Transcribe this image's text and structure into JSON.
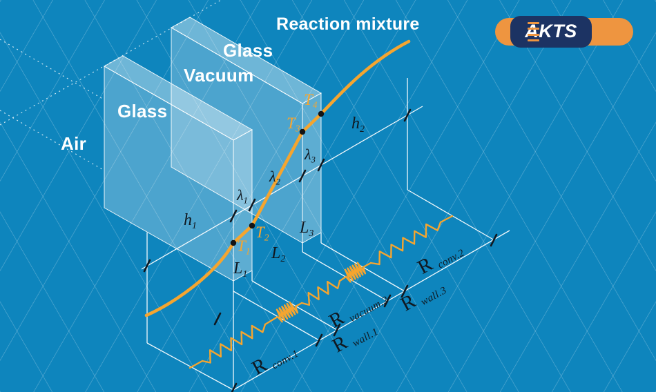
{
  "colors": {
    "background": "#0E85BD",
    "grid_line": "rgba(255,255,255,0.20)",
    "curve_orange": "#F5A52F",
    "diagram_white": "#FFFFFF",
    "math_label_dark": "#101820",
    "logo_orange": "#EE9540",
    "logo_navy": "#1C3363"
  },
  "regions": {
    "air": "Air",
    "glass_outer": "Glass",
    "vacuum": "Vacuum",
    "glass_inner": "Glass",
    "reaction_mixture": "Reaction mixture"
  },
  "temperatures": {
    "t1": {
      "main": "T",
      "sub": "1"
    },
    "t2": {
      "main": "T",
      "sub": "2"
    },
    "t3": {
      "main": "T",
      "sub": "3"
    },
    "t4": {
      "main": "T",
      "sub": "4"
    }
  },
  "dimensions": {
    "h1": {
      "main": "h",
      "sub": "1"
    },
    "h2": {
      "main": "h",
      "sub": "2"
    },
    "lambda1": {
      "main": "λ",
      "sub": "1"
    },
    "lambda2": {
      "main": "λ",
      "sub": "2"
    },
    "lambda3": {
      "main": "λ",
      "sub": "3"
    },
    "l1": {
      "main": "L",
      "sub": "1"
    },
    "l2": {
      "main": "L",
      "sub": "2"
    },
    "l3": {
      "main": "L",
      "sub": "3"
    }
  },
  "resistances": {
    "r_conv_1": {
      "main": "R",
      "sub": "conv.1"
    },
    "r_wall_1": {
      "main": "R",
      "sub": "wall.1"
    },
    "r_vacuum_2": {
      "main": "R",
      "sub": "vacuum.2"
    },
    "r_wall_3": {
      "main": "R",
      "sub": "wall.3"
    },
    "r_conv_2": {
      "main": "R",
      "sub": "conv.2"
    }
  },
  "logo": {
    "text": "AKTS"
  }
}
